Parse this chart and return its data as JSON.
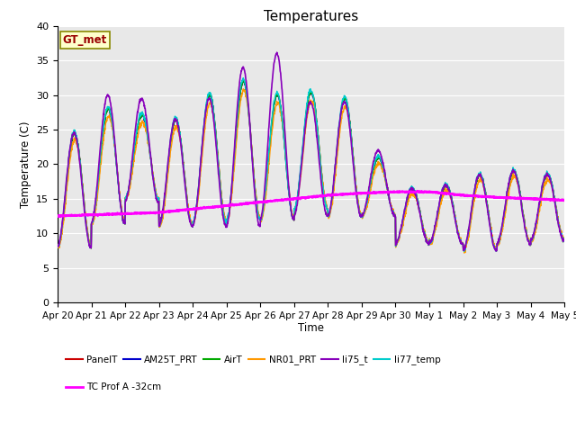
{
  "title": "Temperatures",
  "ylabel": "Temperature (C)",
  "xlabel": "Time",
  "ylim": [
    0,
    40
  ],
  "fig_bg": "#ffffff",
  "plot_bg": "#e8e8e8",
  "annotation_text": "GT_met",
  "series": {
    "PanelT": {
      "color": "#cc0000",
      "lw": 1.0,
      "zorder": 3
    },
    "AM25T_PRT": {
      "color": "#0000cc",
      "lw": 1.0,
      "zorder": 3
    },
    "AirT": {
      "color": "#00aa00",
      "lw": 1.0,
      "zorder": 3
    },
    "NR01_PRT": {
      "color": "#ff9900",
      "lw": 1.0,
      "zorder": 3
    },
    "li75_t": {
      "color": "#8800bb",
      "lw": 1.2,
      "zorder": 4
    },
    "li77_temp": {
      "color": "#00cccc",
      "lw": 1.0,
      "zorder": 3
    },
    "TC Prof A -32cm": {
      "color": "#ff00ff",
      "lw": 1.8,
      "zorder": 5
    }
  },
  "yticks": [
    0,
    5,
    10,
    15,
    20,
    25,
    30,
    35,
    40
  ],
  "xtick_labels": [
    "Apr 20",
    "Apr 21",
    "Apr 22",
    "Apr 23",
    "Apr 24",
    "Apr 25",
    "Apr 26",
    "Apr 27",
    "Apr 28",
    "Apr 29",
    "Apr 30",
    "May 1",
    "May 2",
    "May 3",
    "May 4",
    "May 5"
  ],
  "num_days": 15,
  "grid_color": "#ffffff",
  "daily_peaks": [
    24.5,
    28.0,
    27.2,
    26.5,
    30.0,
    32.0,
    30.0,
    30.5,
    29.5,
    21.0,
    16.5,
    17.0,
    18.5,
    19.0,
    18.5
  ],
  "daily_mins": [
    8.0,
    11.5,
    15.0,
    11.0,
    11.5,
    12.0,
    12.0,
    13.5,
    12.5,
    12.5,
    8.5,
    8.5,
    7.5,
    8.5,
    9.0
  ],
  "li75_peaks": [
    24.5,
    30.0,
    29.5,
    26.5,
    29.5,
    34.0,
    36.0,
    29.0,
    29.0,
    22.0,
    16.5,
    17.0,
    18.5,
    19.0,
    18.5
  ],
  "li75_mins": [
    8.0,
    11.5,
    14.5,
    11.0,
    11.0,
    11.0,
    12.0,
    12.5,
    12.5,
    12.5,
    8.5,
    8.5,
    7.5,
    8.5,
    9.0
  ],
  "tc_waypoints": [
    [
      0,
      12.5
    ],
    [
      3,
      13.0
    ],
    [
      6,
      14.5
    ],
    [
      7,
      15.0
    ],
    [
      8,
      15.5
    ],
    [
      9,
      15.8
    ],
    [
      10,
      16.0
    ],
    [
      11,
      16.0
    ],
    [
      12,
      15.5
    ],
    [
      13,
      15.2
    ],
    [
      14,
      15.0
    ],
    [
      15,
      14.8
    ]
  ]
}
